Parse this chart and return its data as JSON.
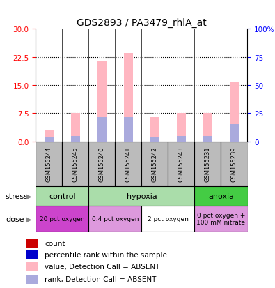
{
  "title": "GDS2893 / PA3479_rhlA_at",
  "samples": [
    "GSM155244",
    "GSM155245",
    "GSM155240",
    "GSM155241",
    "GSM155242",
    "GSM155243",
    "GSM155231",
    "GSM155239"
  ],
  "values_absent": [
    3.0,
    7.5,
    21.5,
    23.5,
    6.5,
    7.5,
    7.5,
    15.8
  ],
  "rank_absent": [
    1.2,
    1.5,
    6.5,
    6.5,
    1.2,
    1.5,
    1.5,
    4.5
  ],
  "ylim_left": [
    0,
    30
  ],
  "ylim_right": [
    0,
    100
  ],
  "yticks_left": [
    0,
    7.5,
    15,
    22.5,
    30
  ],
  "yticks_right": [
    0,
    25,
    50,
    75,
    100
  ],
  "ytick_labels_right": [
    "0",
    "25",
    "50",
    "75",
    "100%"
  ],
  "stress_groups": [
    {
      "label": "control",
      "start": 0,
      "end": 2,
      "color": "#aaddaa"
    },
    {
      "label": "hypoxia",
      "start": 2,
      "end": 6,
      "color": "#aaddaa"
    },
    {
      "label": "anoxia",
      "start": 6,
      "end": 8,
      "color": "#44cc44"
    }
  ],
  "dose_groups": [
    {
      "label": "20 pct oxygen",
      "start": 0,
      "end": 2,
      "color": "#cc44cc"
    },
    {
      "label": "0.4 pct oxygen",
      "start": 2,
      "end": 4,
      "color": "#dd99dd"
    },
    {
      "label": "2 pct oxygen",
      "start": 4,
      "end": 6,
      "color": "#ffffff"
    },
    {
      "label": "0 pct oxygen +\n100 mM nitrate",
      "start": 6,
      "end": 8,
      "color": "#dd99dd"
    }
  ],
  "bar_color_absent": "#ffb6c1",
  "rank_color_absent": "#aaaadd",
  "legend_items": [
    {
      "color": "#cc0000",
      "label": "count"
    },
    {
      "color": "#0000cc",
      "label": "percentile rank within the sample"
    },
    {
      "color": "#ffb6c1",
      "label": "value, Detection Call = ABSENT"
    },
    {
      "color": "#aaaadd",
      "label": "rank, Detection Call = ABSENT"
    }
  ],
  "bar_width": 0.35,
  "sample_box_color": "#bbbbbb",
  "stress_label": "stress",
  "dose_label": "dose"
}
